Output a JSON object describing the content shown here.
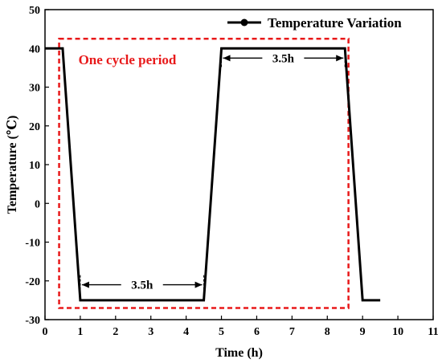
{
  "chart_data": {
    "type": "line",
    "title": "",
    "xlabel": "Time (h)",
    "ylabel": "Temperature (℃)",
    "xlim": [
      0,
      11
    ],
    "ylim": [
      -30,
      50
    ],
    "x_ticks": [
      0,
      1,
      2,
      3,
      4,
      5,
      6,
      7,
      8,
      9,
      10,
      11
    ],
    "y_ticks": [
      -30,
      -20,
      -10,
      0,
      10,
      20,
      30,
      40,
      50
    ],
    "grid": false,
    "legend_position": "top-right",
    "series": [
      {
        "name": "Temperature Variation",
        "color": "#000000",
        "x": [
          0,
          0.5,
          1.0,
          4.5,
          5.0,
          8.5,
          9.0,
          9.5
        ],
        "y": [
          40,
          40,
          -25,
          -25,
          40,
          40,
          -25,
          -25
        ]
      }
    ],
    "annotations": {
      "cycle_box": {
        "label": "One cycle period",
        "color": "#e8191a",
        "x_range": [
          0.4,
          8.6
        ],
        "y_range": [
          -27,
          42.5
        ]
      },
      "durations": [
        {
          "label": "3.5h",
          "x_from": 1.0,
          "x_to": 4.5,
          "y": -21
        },
        {
          "label": "3.5h",
          "x_from": 5.0,
          "x_to": 8.5,
          "y": 37.5
        }
      ]
    }
  }
}
